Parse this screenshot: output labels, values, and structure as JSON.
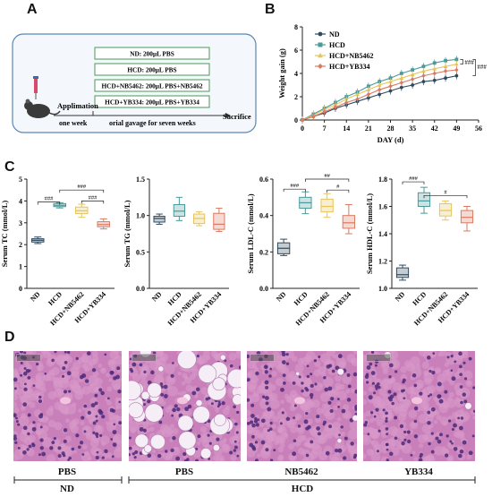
{
  "panels": {
    "A": "A",
    "B": "B",
    "C": "C",
    "D": "D"
  },
  "schematic": {
    "groups": [
      "ND: 200μL PBS",
      "HCD: 200μL PBS",
      "HCD+NB5462: 200μL PBS+NB5462",
      "HCD+YB334: 200μL PBS+YB334"
    ],
    "applimation": "Applimation",
    "sacrifice": "Sacrifice",
    "one_week": "one week",
    "gavage": "orial gavage for seven weeks"
  },
  "colors": {
    "ND": "#2f4a5e",
    "HCD": "#4a9a99",
    "NB5462": "#e6c55c",
    "YB334": "#d97a62",
    "box_border": "#5a86b5",
    "schematic_bg": "#f4f7fc",
    "group_box": "#4a9a5a"
  },
  "chart_data": [
    {
      "type": "line",
      "panel": "B",
      "xlabel": "DAY (d)",
      "ylabel": "Weight gain (g)",
      "x": [
        0,
        7,
        14,
        21,
        28,
        35,
        42,
        49
      ],
      "xlim": [
        0,
        56
      ],
      "ylim": [
        0,
        8
      ],
      "yticks": [
        0,
        2,
        4,
        6,
        8
      ],
      "xticks": [
        0,
        7,
        14,
        21,
        28,
        35,
        42,
        49,
        56
      ],
      "series": [
        {
          "name": "ND",
          "color": "#2f4a5e",
          "marker": "circle",
          "x": [
            0,
            3.5,
            7,
            10.5,
            14,
            17.5,
            21,
            24.5,
            28,
            31.5,
            35,
            38.5,
            42,
            45.5,
            49
          ],
          "values": [
            0,
            0.3,
            0.6,
            1.0,
            1.3,
            1.6,
            1.9,
            2.2,
            2.5,
            2.8,
            3.0,
            3.3,
            3.4,
            3.6,
            3.8
          ]
        },
        {
          "name": "HCD",
          "color": "#4a9a99",
          "marker": "square",
          "x": [
            0,
            3.5,
            7,
            10.5,
            14,
            17.5,
            21,
            24.5,
            28,
            31.5,
            35,
            38.5,
            42,
            45.5,
            49
          ],
          "values": [
            0,
            0.5,
            1.0,
            1.5,
            2.0,
            2.4,
            2.9,
            3.3,
            3.6,
            4.0,
            4.3,
            4.6,
            4.9,
            5.1,
            5.2
          ]
        },
        {
          "name": "HCD+NB5462",
          "color": "#e6c55c",
          "marker": "triangle",
          "x": [
            0,
            3.5,
            7,
            10.5,
            14,
            17.5,
            21,
            24.5,
            28,
            31.5,
            35,
            38.5,
            42,
            45.5,
            49
          ],
          "values": [
            0,
            0.4,
            0.9,
            1.3,
            1.8,
            2.2,
            2.6,
            3.0,
            3.3,
            3.6,
            3.9,
            4.2,
            4.4,
            4.6,
            4.8
          ]
        },
        {
          "name": "HCD+YB334",
          "color": "#d97a62",
          "marker": "diamond",
          "x": [
            0,
            3.5,
            7,
            10.5,
            14,
            17.5,
            21,
            24.5,
            28,
            31.5,
            35,
            38.5,
            42,
            45.5,
            49
          ],
          "values": [
            0,
            0.3,
            0.7,
            1.1,
            1.5,
            1.8,
            2.2,
            2.6,
            2.9,
            3.2,
            3.5,
            3.8,
            4.0,
            4.2,
            4.3
          ]
        }
      ],
      "annotations": [
        "###",
        "###"
      ]
    },
    {
      "type": "box",
      "panel": "C",
      "ylabel": "Serum TC (mmol/L)",
      "categories": [
        "ND",
        "HCD",
        "HCD+NB5462",
        "HCD+YB334"
      ],
      "ylim": [
        0,
        5
      ],
      "yticks": [
        0,
        1,
        2,
        3,
        4,
        5
      ],
      "boxes": [
        {
          "min": 2.05,
          "q1": 2.12,
          "median": 2.2,
          "q3": 2.27,
          "max": 2.35
        },
        {
          "min": 3.68,
          "q1": 3.74,
          "median": 3.8,
          "q3": 3.88,
          "max": 3.92
        },
        {
          "min": 3.25,
          "q1": 3.42,
          "median": 3.55,
          "q3": 3.72,
          "max": 3.85
        },
        {
          "min": 2.72,
          "q1": 2.82,
          "median": 2.92,
          "q3": 3.05,
          "max": 3.18
        }
      ],
      "annotations": [
        "###",
        "###",
        "###"
      ]
    },
    {
      "type": "box",
      "panel": "C",
      "ylabel": "Serum TG (mmol/L)",
      "categories": [
        "ND",
        "HCD",
        "HCD+NB5462",
        "HCD+YB334"
      ],
      "ylim": [
        0,
        1.5
      ],
      "yticks": [
        0.0,
        0.5,
        1.0,
        1.5
      ],
      "boxes": [
        {
          "min": 0.88,
          "q1": 0.91,
          "median": 0.96,
          "q3": 0.99,
          "max": 1.02
        },
        {
          "min": 0.93,
          "q1": 0.99,
          "median": 1.06,
          "q3": 1.15,
          "max": 1.25
        },
        {
          "min": 0.86,
          "q1": 0.89,
          "median": 0.96,
          "q3": 1.02,
          "max": 1.05
        },
        {
          "min": 0.78,
          "q1": 0.81,
          "median": 0.88,
          "q3": 1.03,
          "max": 1.1
        }
      ],
      "annotations": []
    },
    {
      "type": "box",
      "panel": "C",
      "ylabel": "Serum LDL-C (mmol/L)",
      "categories": [
        "ND",
        "HCD",
        "HCD+NB5462",
        "HCD+YB334"
      ],
      "ylim": [
        0.0,
        0.6
      ],
      "yticks": [
        0.0,
        0.2,
        0.4,
        0.6
      ],
      "boxes": [
        {
          "min": 0.18,
          "q1": 0.19,
          "median": 0.22,
          "q3": 0.25,
          "max": 0.27
        },
        {
          "min": 0.41,
          "q1": 0.44,
          "median": 0.47,
          "q3": 0.5,
          "max": 0.53
        },
        {
          "min": 0.39,
          "q1": 0.42,
          "median": 0.45,
          "q3": 0.49,
          "max": 0.52
        },
        {
          "min": 0.3,
          "q1": 0.33,
          "median": 0.36,
          "q3": 0.4,
          "max": 0.46
        }
      ],
      "annotations": [
        "###",
        "##",
        "#"
      ]
    },
    {
      "type": "box",
      "panel": "C",
      "ylabel": "Serum HDL-C (mmol/L)",
      "categories": [
        "ND",
        "HCD",
        "HCD+NB5462",
        "HCD+YB334"
      ],
      "ylim": [
        1.0,
        1.8
      ],
      "yticks": [
        1.0,
        1.2,
        1.4,
        1.6,
        1.8
      ],
      "boxes": [
        {
          "min": 1.06,
          "q1": 1.08,
          "median": 1.1,
          "q3": 1.15,
          "max": 1.17
        },
        {
          "min": 1.55,
          "q1": 1.6,
          "median": 1.64,
          "q3": 1.7,
          "max": 1.74
        },
        {
          "min": 1.5,
          "q1": 1.53,
          "median": 1.57,
          "q3": 1.62,
          "max": 1.64
        },
        {
          "min": 1.42,
          "q1": 1.48,
          "median": 1.52,
          "q3": 1.57,
          "max": 1.6
        }
      ],
      "annotations": [
        "###",
        "#"
      ]
    }
  ],
  "histology": {
    "labels": [
      "PBS",
      "PBS",
      "NB5462",
      "YB334"
    ],
    "groups": [
      "ND",
      "HCD"
    ]
  }
}
